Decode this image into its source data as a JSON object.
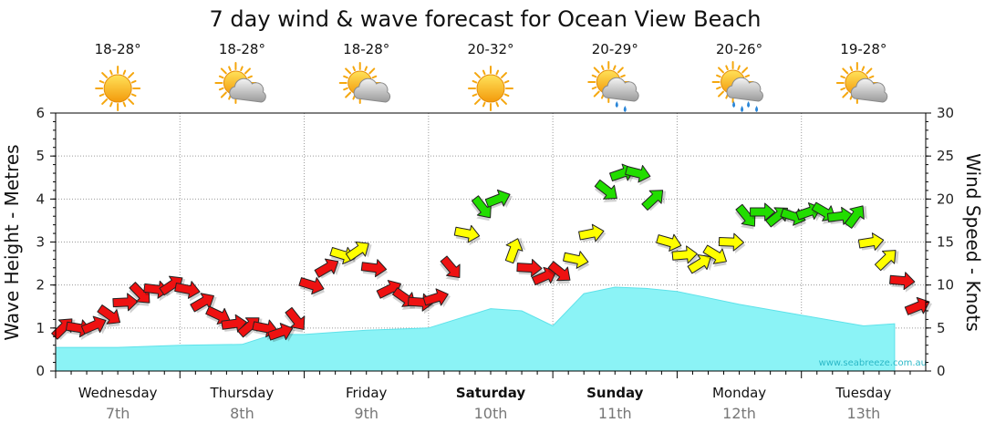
{
  "chart_data": {
    "type": "line",
    "title": "7 day wind & wave forecast for Ocean View Beach",
    "ylabel_left": "Wave Height - Metres",
    "ylabel_right": "Wind Speed - Knots",
    "ylim_left": [
      0,
      6
    ],
    "ylim_right": [
      0,
      30
    ],
    "yticks_left": [
      "0",
      "1",
      "2",
      "3",
      "4",
      "5",
      "6"
    ],
    "yticks_right": [
      "0",
      "5",
      "10",
      "15",
      "20",
      "25",
      "30"
    ],
    "grid": true,
    "watermark": "www.seabreeze.com.au",
    "days": [
      {
        "day": "Wednesday",
        "date": "7th",
        "temp": "18-28°",
        "weather": "sunny-icon",
        "bold": false
      },
      {
        "day": "Thursday",
        "date": "8th",
        "temp": "18-28°",
        "weather": "partly-cloudy-icon",
        "bold": false
      },
      {
        "day": "Friday",
        "date": "9th",
        "temp": "18-28°",
        "weather": "partly-cloudy-icon",
        "bold": false
      },
      {
        "day": "Saturday",
        "date": "10th",
        "temp": "20-32°",
        "weather": "sunny-icon",
        "bold": true
      },
      {
        "day": "Sunday",
        "date": "11th",
        "temp": "20-29°",
        "weather": "light-rain-icon",
        "bold": true
      },
      {
        "day": "Monday",
        "date": "12th",
        "temp": "20-26°",
        "weather": "rain-icon",
        "bold": false
      },
      {
        "day": "Tuesday",
        "date": "13th",
        "temp": "19-28°",
        "weather": "partly-cloudy-icon",
        "bold": false
      }
    ],
    "wave_height_m": {
      "t": [
        0,
        0.5,
        1,
        1.5,
        1.75,
        2,
        2.5,
        3,
        3.5,
        3.75,
        4,
        4.25,
        4.5,
        4.75,
        5,
        5.5,
        6,
        6.5,
        6.75
      ],
      "values": [
        0.55,
        0.55,
        0.6,
        0.62,
        0.85,
        0.85,
        0.95,
        1.0,
        1.45,
        1.4,
        1.05,
        1.8,
        1.95,
        1.92,
        1.85,
        1.55,
        1.3,
        1.05,
        1.1
      ]
    },
    "wind_speed_kn": {
      "t": [
        0,
        0.125,
        0.25,
        0.375,
        0.5,
        0.625,
        0.75,
        0.875,
        1.0,
        1.125,
        1.25,
        1.375,
        1.5,
        1.625,
        1.75,
        1.875,
        2.0,
        2.125,
        2.25,
        2.375,
        2.5,
        2.625,
        2.75,
        2.875,
        3.0,
        3.125,
        3.25,
        3.375,
        3.5,
        3.625,
        3.75,
        3.875,
        4.0,
        4.125,
        4.25,
        4.375,
        4.5,
        4.625,
        4.75,
        4.875,
        5.0,
        5.125,
        5.25,
        5.375,
        5.5,
        5.625,
        5.75,
        5.875,
        6.0,
        6.125,
        6.25,
        6.375,
        6.5,
        6.625,
        6.75,
        6.875
      ],
      "values": [
        5,
        5,
        5.3,
        6.5,
        8,
        9,
        9.5,
        10,
        9.5,
        8,
        6.5,
        5.5,
        5.2,
        5,
        4.5,
        6,
        10,
        12,
        13.5,
        14,
        12,
        9.5,
        8.5,
        8,
        8.5,
        12,
        16,
        19,
        20,
        14,
        12,
        11,
        11.5,
        13,
        16,
        21,
        23,
        23,
        20,
        15,
        13.5,
        12.5,
        13.5,
        15,
        18,
        18.5,
        18,
        18,
        18.5,
        18.5,
        18,
        18,
        15,
        13,
        10.5,
        7.5
      ]
    },
    "wind_color_scale": [
      {
        "max": 12,
        "color": "#ee1111"
      },
      {
        "max": 17,
        "color": "#ffff00"
      },
      {
        "max": 30,
        "color": "#22dd00"
      }
    ]
  }
}
